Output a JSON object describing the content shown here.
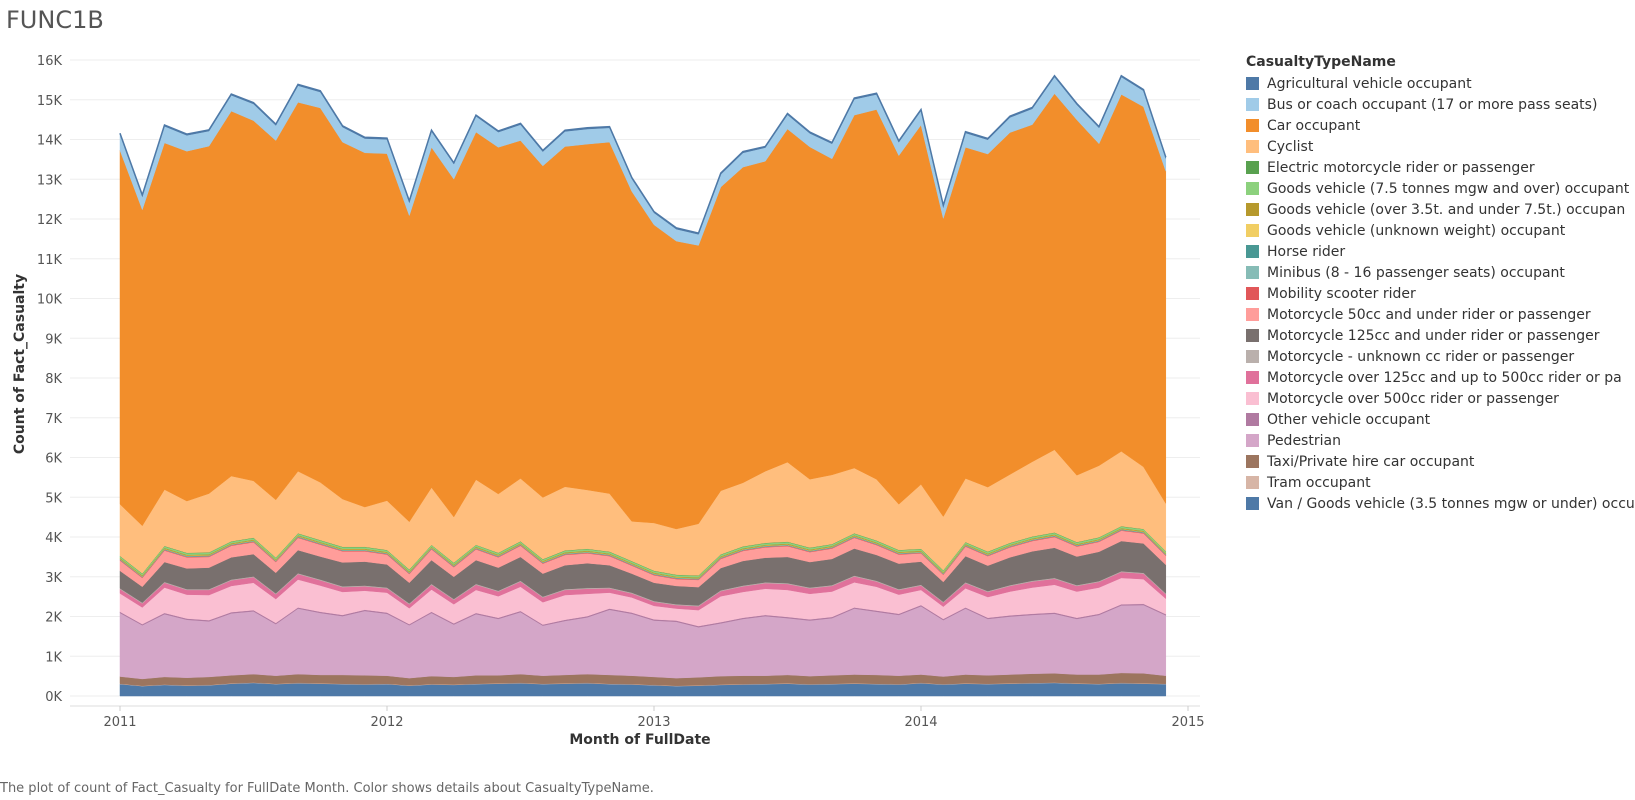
{
  "caption": "The plot of count of Fact_Casualty for FullDate Month.  Color shows details about CasualtyTypeName.",
  "chart_data": {
    "type": "area",
    "stacked": true,
    "title": "FUNC1B",
    "xlabel": "Month of FullDate",
    "ylabel": "Count of Fact_Casualty",
    "ylim": [
      0,
      16000
    ],
    "yticks": [
      0,
      1000,
      2000,
      3000,
      4000,
      5000,
      6000,
      7000,
      8000,
      9000,
      10000,
      11000,
      12000,
      13000,
      14000,
      15000,
      16000
    ],
    "ytick_labels": [
      "0K",
      "1K",
      "2K",
      "3K",
      "4K",
      "5K",
      "6K",
      "7K",
      "8K",
      "9K",
      "10K",
      "11K",
      "12K",
      "13K",
      "14K",
      "15K",
      "16K"
    ],
    "xticks": [
      "2011",
      "2012",
      "2013",
      "2014",
      "2015"
    ],
    "x": [
      "2011-01",
      "2011-02",
      "2011-03",
      "2011-04",
      "2011-05",
      "2011-06",
      "2011-07",
      "2011-08",
      "2011-09",
      "2011-10",
      "2011-11",
      "2011-12",
      "2012-01",
      "2012-02",
      "2012-03",
      "2012-04",
      "2012-05",
      "2012-06",
      "2012-07",
      "2012-08",
      "2012-09",
      "2012-10",
      "2012-11",
      "2012-12",
      "2013-01",
      "2013-02",
      "2013-03",
      "2013-04",
      "2013-05",
      "2013-06",
      "2013-07",
      "2013-08",
      "2013-09",
      "2013-10",
      "2013-11",
      "2013-12",
      "2014-01",
      "2014-02",
      "2014-03",
      "2014-04",
      "2014-05",
      "2014-06",
      "2014-07",
      "2014-08",
      "2014-09",
      "2014-10",
      "2014-11",
      "2014-12"
    ],
    "legend": {
      "title": "CasualtyTypeName",
      "position": "right"
    },
    "grid": true,
    "series": [
      {
        "name": "Van / Goods vehicle (3.5 tonnes mgw or under) occu",
        "color": "#4e79a7",
        "values": [
          300,
          250,
          280,
          260,
          270,
          310,
          330,
          300,
          320,
          310,
          300,
          290,
          300,
          260,
          290,
          280,
          300,
          310,
          320,
          300,
          310,
          320,
          300,
          290,
          270,
          250,
          260,
          280,
          290,
          300,
          310,
          290,
          300,
          310,
          300,
          290,
          320,
          290,
          310,
          300,
          310,
          320,
          330,
          310,
          300,
          320,
          310,
          300
        ]
      },
      {
        "name": "Tram occupant",
        "color": "#d7b5a6",
        "values": [
          10,
          10,
          10,
          10,
          10,
          10,
          10,
          10,
          10,
          10,
          10,
          10,
          10,
          10,
          10,
          10,
          10,
          10,
          10,
          10,
          10,
          10,
          10,
          10,
          10,
          10,
          10,
          10,
          10,
          10,
          10,
          10,
          10,
          10,
          10,
          10,
          10,
          10,
          10,
          10,
          10,
          10,
          10,
          10,
          10,
          10,
          10,
          10
        ]
      },
      {
        "name": "Taxi/Private hire car occupant",
        "color": "#9c755f",
        "values": [
          180,
          170,
          190,
          190,
          200,
          200,
          210,
          200,
          220,
          210,
          220,
          220,
          200,
          180,
          200,
          190,
          210,
          200,
          220,
          200,
          210,
          220,
          220,
          210,
          200,
          190,
          200,
          210,
          210,
          200,
          210,
          200,
          210,
          220,
          220,
          210,
          210,
          190,
          220,
          210,
          220,
          230,
          230,
          220,
          230,
          250,
          250,
          200
        ]
      },
      {
        "name": "Pedestrian",
        "color": "#d4a6c8",
        "values": [
          1600,
          1350,
          1580,
          1460,
          1400,
          1560,
          1580,
          1300,
          1650,
          1560,
          1480,
          1620,
          1560,
          1330,
          1590,
          1320,
          1540,
          1420,
          1560,
          1260,
          1360,
          1430,
          1640,
          1560,
          1420,
          1420,
          1260,
          1330,
          1430,
          1500,
          1430,
          1400,
          1440,
          1660,
          1590,
          1530,
          1720,
          1420,
          1660,
          1420,
          1460,
          1480,
          1500,
          1400,
          1500,
          1700,
          1720,
          1520
        ]
      },
      {
        "name": "Other vehicle occupant",
        "color": "#b07aa1",
        "values": [
          30,
          30,
          30,
          30,
          30,
          30,
          30,
          30,
          30,
          30,
          30,
          30,
          30,
          30,
          30,
          30,
          30,
          30,
          30,
          30,
          30,
          30,
          30,
          30,
          30,
          30,
          30,
          30,
          30,
          30,
          30,
          30,
          30,
          30,
          30,
          30,
          30,
          30,
          30,
          30,
          30,
          30,
          30,
          30,
          30,
          30,
          30,
          30
        ]
      },
      {
        "name": "Motorcycle over 500cc rider or passenger",
        "color": "#fabfd2",
        "values": [
          460,
          420,
          640,
          600,
          630,
          660,
          690,
          600,
          700,
          660,
          580,
          480,
          500,
          400,
          560,
          480,
          580,
          540,
          610,
          560,
          620,
          560,
          400,
          380,
          340,
          300,
          400,
          650,
          650,
          660,
          680,
          640,
          640,
          630,
          600,
          480,
          380,
          310,
          480,
          520,
          600,
          660,
          700,
          660,
          660,
          660,
          620,
          390
        ]
      },
      {
        "name": "Motorcycle over 125cc and up to 500cc rider or  pa",
        "color": "#e0719b",
        "values": [
          110,
          100,
          120,
          120,
          130,
          140,
          140,
          120,
          140,
          130,
          120,
          110,
          110,
          100,
          120,
          110,
          130,
          120,
          130,
          120,
          130,
          130,
          110,
          100,
          100,
          90,
          100,
          130,
          140,
          140,
          150,
          140,
          140,
          150,
          130,
          120,
          110,
          100,
          130,
          130,
          140,
          150,
          150,
          140,
          140,
          150,
          140,
          110
        ]
      },
      {
        "name": "Motorcycle - unknown cc rider or passenger",
        "color": "#bab0ac",
        "values": [
          20,
          20,
          20,
          20,
          20,
          20,
          20,
          20,
          20,
          20,
          20,
          20,
          20,
          20,
          20,
          20,
          20,
          20,
          20,
          20,
          20,
          20,
          20,
          20,
          20,
          20,
          20,
          20,
          20,
          20,
          20,
          20,
          20,
          20,
          20,
          20,
          20,
          20,
          20,
          20,
          20,
          20,
          20,
          20,
          20,
          20,
          20,
          20
        ]
      },
      {
        "name": "Motorcycle 125cc and under rider or passenger",
        "color": "#79706e",
        "values": [
          440,
          400,
          500,
          520,
          540,
          560,
          560,
          520,
          580,
          580,
          600,
          600,
          580,
          520,
          600,
          560,
          600,
          580,
          600,
          580,
          600,
          620,
          560,
          480,
          460,
          460,
          460,
          560,
          620,
          620,
          660,
          640,
          660,
          680,
          650,
          640,
          580,
          500,
          660,
          640,
          700,
          740,
          760,
          720,
          740,
          760,
          740,
          720
        ]
      },
      {
        "name": "Motorcycle 50cc and under rider or passenger",
        "color": "#ff9d9a",
        "values": [
          260,
          220,
          290,
          280,
          270,
          290,
          300,
          270,
          310,
          300,
          280,
          260,
          250,
          220,
          270,
          240,
          270,
          260,
          280,
          250,
          260,
          250,
          230,
          200,
          190,
          170,
          180,
          230,
          250,
          260,
          270,
          250,
          260,
          270,
          250,
          230,
          210,
          180,
          240,
          240,
          250,
          260,
          270,
          250,
          250,
          260,
          250,
          230
        ]
      },
      {
        "name": "Mobility scooter rider",
        "color": "#e15759",
        "values": [
          15,
          15,
          15,
          15,
          15,
          15,
          15,
          15,
          15,
          15,
          15,
          15,
          15,
          15,
          15,
          15,
          15,
          15,
          15,
          15,
          15,
          15,
          15,
          15,
          15,
          15,
          15,
          15,
          15,
          15,
          15,
          15,
          15,
          15,
          15,
          15,
          15,
          15,
          15,
          15,
          15,
          15,
          15,
          15,
          15,
          15,
          15,
          15
        ]
      },
      {
        "name": "Minibus (8 - 16 passenger seats) occupant",
        "color": "#86bcb6",
        "values": [
          10,
          10,
          10,
          10,
          10,
          10,
          10,
          10,
          10,
          10,
          10,
          10,
          10,
          10,
          10,
          10,
          10,
          10,
          10,
          10,
          10,
          10,
          10,
          10,
          10,
          10,
          10,
          10,
          10,
          10,
          10,
          10,
          10,
          10,
          10,
          10,
          10,
          10,
          10,
          10,
          10,
          10,
          10,
          10,
          10,
          10,
          10,
          10
        ]
      },
      {
        "name": "Horse rider",
        "color": "#499894",
        "values": [
          10,
          10,
          10,
          10,
          10,
          10,
          10,
          10,
          10,
          10,
          10,
          10,
          10,
          10,
          10,
          10,
          10,
          10,
          10,
          10,
          10,
          10,
          10,
          10,
          10,
          10,
          10,
          10,
          10,
          10,
          10,
          10,
          10,
          10,
          10,
          10,
          10,
          10,
          10,
          10,
          10,
          10,
          10,
          10,
          10,
          10,
          10,
          10
        ]
      },
      {
        "name": "Goods vehicle (unknown weight) occupant",
        "color": "#f1ce63",
        "values": [
          10,
          10,
          10,
          10,
          10,
          10,
          10,
          10,
          10,
          10,
          10,
          10,
          10,
          10,
          10,
          10,
          10,
          10,
          10,
          10,
          10,
          10,
          10,
          10,
          10,
          10,
          10,
          10,
          10,
          10,
          10,
          10,
          10,
          10,
          10,
          10,
          10,
          10,
          10,
          10,
          10,
          10,
          10,
          10,
          10,
          10,
          10,
          10
        ]
      },
      {
        "name": "Goods vehicle (over 3.5t. and under 7.5t.) occupan",
        "color": "#b6992d",
        "values": [
          20,
          20,
          20,
          20,
          20,
          20,
          20,
          20,
          20,
          20,
          20,
          20,
          20,
          20,
          20,
          20,
          20,
          20,
          20,
          20,
          20,
          20,
          20,
          20,
          20,
          20,
          20,
          20,
          20,
          20,
          20,
          20,
          20,
          20,
          20,
          20,
          20,
          20,
          20,
          20,
          20,
          20,
          20,
          20,
          20,
          20,
          20,
          20
        ]
      },
      {
        "name": "Goods vehicle (7.5 tonnes mgw and over) occupant",
        "color": "#8cd17d",
        "values": [
          40,
          40,
          40,
          40,
          40,
          40,
          40,
          40,
          40,
          40,
          40,
          40,
          40,
          40,
          40,
          40,
          40,
          40,
          40,
          40,
          40,
          40,
          40,
          40,
          40,
          40,
          40,
          40,
          40,
          40,
          40,
          40,
          40,
          40,
          40,
          40,
          40,
          40,
          40,
          40,
          40,
          40,
          40,
          40,
          40,
          40,
          40,
          40
        ]
      },
      {
        "name": "Electric motorcycle rider or passenger",
        "color": "#59a14f",
        "values": [
          10,
          10,
          10,
          10,
          10,
          10,
          10,
          10,
          10,
          10,
          10,
          10,
          10,
          10,
          10,
          10,
          10,
          10,
          10,
          10,
          10,
          10,
          10,
          10,
          10,
          10,
          10,
          10,
          10,
          10,
          10,
          10,
          10,
          10,
          10,
          10,
          10,
          10,
          10,
          10,
          10,
          10,
          10,
          10,
          10,
          10,
          10,
          10
        ]
      },
      {
        "name": "Cyclist",
        "color": "#ffbe7d",
        "values": [
          1300,
          1200,
          1420,
          1300,
          1480,
          1640,
          1430,
          1450,
          1560,
          1450,
          1200,
          1000,
          1240,
          1200,
          1440,
          1150,
          1640,
          1480,
          1580,
          1550,
          1600,
          1480,
          1460,
          1000,
          1200,
          1150,
          1300,
          1600,
          1600,
          1800,
          2000,
          1720,
          1740,
          1640,
          1540,
          1150,
          1620,
          1350,
          1600,
          1620,
          1720,
          1880,
          2080,
          1680,
          1800,
          1880,
          1560,
          1200
        ]
      },
      {
        "name": "Car occupant",
        "color": "#f28e2b",
        "values": [
          8900,
          7950,
          8720,
          8800,
          8740,
          9180,
          9060,
          9040,
          9280,
          9420,
          8980,
          8910,
          8730,
          7700,
          8560,
          8500,
          8740,
          8720,
          8500,
          8340,
          8560,
          8700,
          8840,
          8300,
          7500,
          7240,
          7000,
          7640,
          7940,
          7800,
          8380,
          8360,
          7950,
          8880,
          9300,
          8770,
          9040,
          7500,
          8330,
          8380,
          8600,
          8480,
          8960,
          8940,
          8100,
          8980,
          9060,
          8360
        ]
      },
      {
        "name": "Bus or coach occupant (17 or more pass seats)",
        "color": "#a0cbe8",
        "values": [
          400,
          340,
          420,
          400,
          380,
          400,
          420,
          380,
          420,
          400,
          380,
          360,
          360,
          340,
          400,
          380,
          400,
          380,
          400,
          360,
          380,
          380,
          360,
          320,
          300,
          300,
          280,
          320,
          360,
          340,
          360,
          340,
          380,
          400,
          380,
          340,
          360,
          300,
          360,
          360,
          380,
          400,
          420,
          380,
          400,
          440,
          400,
          320
        ]
      },
      {
        "name": "Agricultural vehicle occupant",
        "color": "#4e79a7",
        "values": [
          30,
          30,
          30,
          30,
          30,
          30,
          30,
          30,
          30,
          30,
          30,
          30,
          30,
          30,
          30,
          30,
          30,
          30,
          30,
          30,
          30,
          30,
          30,
          30,
          30,
          30,
          30,
          30,
          30,
          30,
          30,
          30,
          30,
          30,
          30,
          30,
          30,
          30,
          30,
          30,
          30,
          30,
          30,
          30,
          30,
          30,
          30,
          30
        ]
      }
    ]
  }
}
